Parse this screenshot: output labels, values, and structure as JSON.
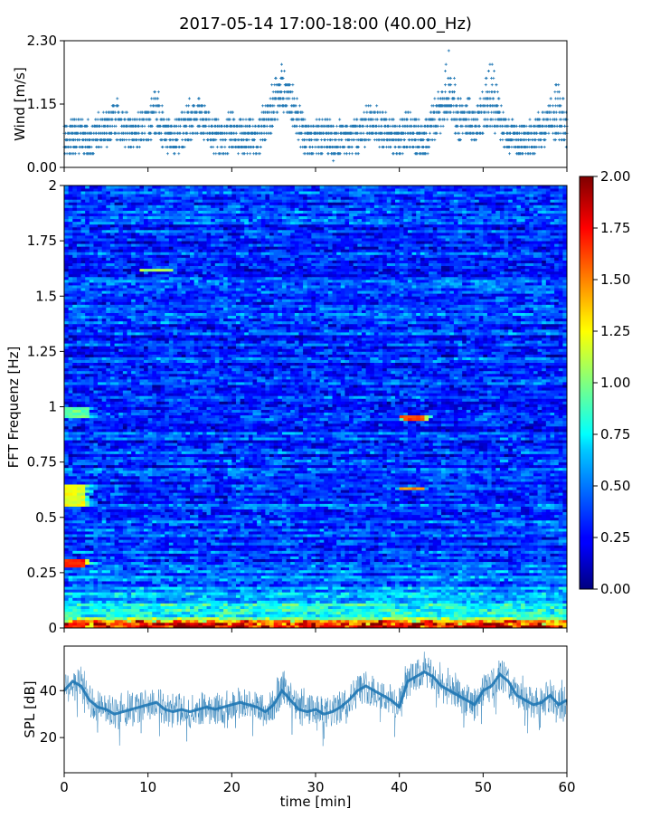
{
  "figure": {
    "title": "2017-05-14 17:00-18:00 (40.00_Hz)",
    "xlabel": "time [min]"
  },
  "chart_data": [
    {
      "type": "scatter",
      "ylabel": "Wind [m/s]",
      "xlim": [
        0,
        60
      ],
      "ylim": [
        0,
        2.3
      ],
      "yticks": [
        0.0,
        1.15,
        2.3
      ],
      "ytick_labels": [
        "0.00",
        "1.15",
        "2.30"
      ],
      "xticks": [
        0,
        10,
        20,
        30,
        40,
        50,
        60
      ],
      "xtick_labels": [],
      "color": "#1f77b4",
      "marker": "+",
      "series": [
        {
          "x": [
            0,
            1,
            2,
            3,
            4,
            5,
            6,
            7,
            8,
            9,
            10,
            11,
            12,
            13,
            14,
            15,
            16,
            17,
            18,
            19,
            20,
            21,
            22,
            23,
            24,
            25,
            26,
            27,
            28,
            29,
            30,
            31,
            32,
            33,
            34,
            35,
            36,
            37,
            38,
            39,
            40,
            41,
            42,
            43,
            44,
            45,
            46,
            47,
            48,
            49,
            50,
            51,
            52,
            53,
            54,
            55,
            56,
            57,
            58,
            59,
            60
          ],
          "y": [
            0.5,
            0.55,
            0.6,
            0.5,
            0.65,
            0.7,
            0.9,
            0.75,
            0.6,
            0.7,
            0.8,
            1.0,
            0.6,
            0.55,
            0.65,
            0.8,
            0.9,
            0.8,
            0.6,
            0.5,
            0.7,
            0.55,
            0.6,
            0.5,
            0.8,
            1.1,
            1.4,
            1.2,
            0.8,
            0.5,
            0.55,
            0.6,
            0.5,
            0.55,
            0.5,
            0.6,
            0.75,
            0.8,
            0.7,
            0.6,
            0.55,
            0.7,
            0.6,
            0.5,
            0.8,
            1.0,
            1.3,
            0.8,
            0.9,
            0.7,
            0.95,
            1.1,
            0.75,
            0.6,
            0.5,
            0.55,
            0.6,
            0.65,
            0.9,
            0.8,
            0.7
          ],
          "y_max": [
            0.8,
            0.85,
            0.9,
            0.8,
            1.0,
            1.0,
            1.35,
            1.1,
            0.9,
            1.0,
            1.1,
            1.5,
            0.9,
            0.85,
            1.0,
            1.25,
            1.3,
            1.2,
            0.9,
            0.8,
            1.05,
            0.85,
            0.9,
            0.8,
            1.2,
            1.6,
            1.85,
            1.7,
            1.2,
            0.8,
            0.85,
            0.9,
            0.8,
            0.85,
            0.8,
            0.9,
            1.1,
            1.15,
            1.05,
            0.9,
            0.85,
            1.05,
            0.9,
            0.8,
            1.2,
            1.5,
            2.3,
            1.25,
            1.35,
            1.05,
            1.45,
            2.05,
            1.15,
            0.9,
            0.8,
            0.85,
            0.9,
            1.0,
            1.5,
            1.65,
            1.1
          ]
        }
      ]
    },
    {
      "type": "heatmap",
      "ylabel": "FFT Frequenz [Hz]",
      "xlim": [
        0,
        60
      ],
      "ylim": [
        0,
        2
      ],
      "yticks": [
        0,
        0.25,
        0.5,
        0.75,
        1,
        1.25,
        1.5,
        1.75,
        2
      ],
      "ytick_labels": [
        "0",
        "0.25",
        "0.5",
        "0.75",
        "1",
        "1.25",
        "1.5",
        "1.75",
        "2"
      ],
      "xticks": [
        0,
        10,
        20,
        30,
        40,
        50,
        60
      ],
      "xtick_labels": [],
      "colormap": "jet",
      "colorbar": {
        "vmin": 0.0,
        "vmax": 2.0,
        "ticks": [
          0.0,
          0.25,
          0.5,
          0.75,
          1.0,
          1.25,
          1.5,
          1.75,
          2.0
        ],
        "tick_labels": [
          "0.00",
          "0.25",
          "0.50",
          "0.75",
          "1.00",
          "1.25",
          "1.50",
          "1.75",
          "2.00"
        ]
      },
      "values_description_free": true,
      "base_level": 0.35,
      "low_frequency_level": [
        {
          "freq": 0.0,
          "value": 1.7
        },
        {
          "freq": 0.05,
          "value": 0.9
        },
        {
          "freq": 0.15,
          "value": 0.55
        },
        {
          "freq": 0.3,
          "value": 0.42
        }
      ],
      "hotspots": [
        {
          "t": [
            0,
            2.5
          ],
          "f": [
            0.55,
            0.65
          ],
          "value": 1.2
        },
        {
          "t": [
            0,
            2.5
          ],
          "f": [
            0.28,
            0.31
          ],
          "value": 1.7
        },
        {
          "t": [
            40,
            43
          ],
          "f": [
            0.94,
            0.96
          ],
          "value": 1.6
        },
        {
          "t": [
            40,
            43
          ],
          "f": [
            0.62,
            0.64
          ],
          "value": 1.5
        },
        {
          "t": [
            0,
            3
          ],
          "f": [
            0.95,
            1.0
          ],
          "value": 0.95
        },
        {
          "t": [
            9,
            13
          ],
          "f": [
            1.61,
            1.63
          ],
          "value": 1.1
        }
      ]
    },
    {
      "type": "line",
      "ylabel": "SPL [dB]",
      "xlabel": "time [min]",
      "xlim": [
        0,
        60
      ],
      "ylim": [
        5,
        59
      ],
      "yticks": [
        20,
        40
      ],
      "ytick_labels": [
        "20",
        "40"
      ],
      "xticks": [
        0,
        10,
        20,
        30,
        40,
        50,
        60
      ],
      "xtick_labels": [
        "0",
        "10",
        "20",
        "30",
        "40",
        "50",
        "60"
      ],
      "color": "#1f77b4",
      "series": [
        {
          "x": [
            0,
            1,
            2,
            3,
            4,
            5,
            6,
            7,
            8,
            9,
            10,
            11,
            12,
            13,
            14,
            15,
            16,
            17,
            18,
            19,
            20,
            21,
            22,
            23,
            24,
            25,
            26,
            27,
            28,
            29,
            30,
            31,
            32,
            33,
            34,
            35,
            36,
            37,
            38,
            39,
            40,
            41,
            42,
            43,
            44,
            45,
            46,
            47,
            48,
            49,
            50,
            51,
            52,
            53,
            54,
            55,
            56,
            57,
            58,
            59,
            60
          ],
          "y": [
            40,
            44,
            42,
            36,
            33,
            32,
            30,
            31,
            32,
            33,
            34,
            35,
            32,
            31,
            32,
            31,
            32,
            33,
            32,
            33,
            34,
            35,
            34,
            33,
            31,
            34,
            40,
            36,
            32,
            31,
            32,
            30,
            31,
            33,
            36,
            40,
            42,
            40,
            38,
            36,
            33,
            44,
            46,
            48,
            46,
            42,
            40,
            38,
            36,
            34,
            40,
            42,
            47,
            44,
            38,
            36,
            34,
            35,
            38,
            34,
            36
          ],
          "band": 7
        }
      ]
    }
  ]
}
